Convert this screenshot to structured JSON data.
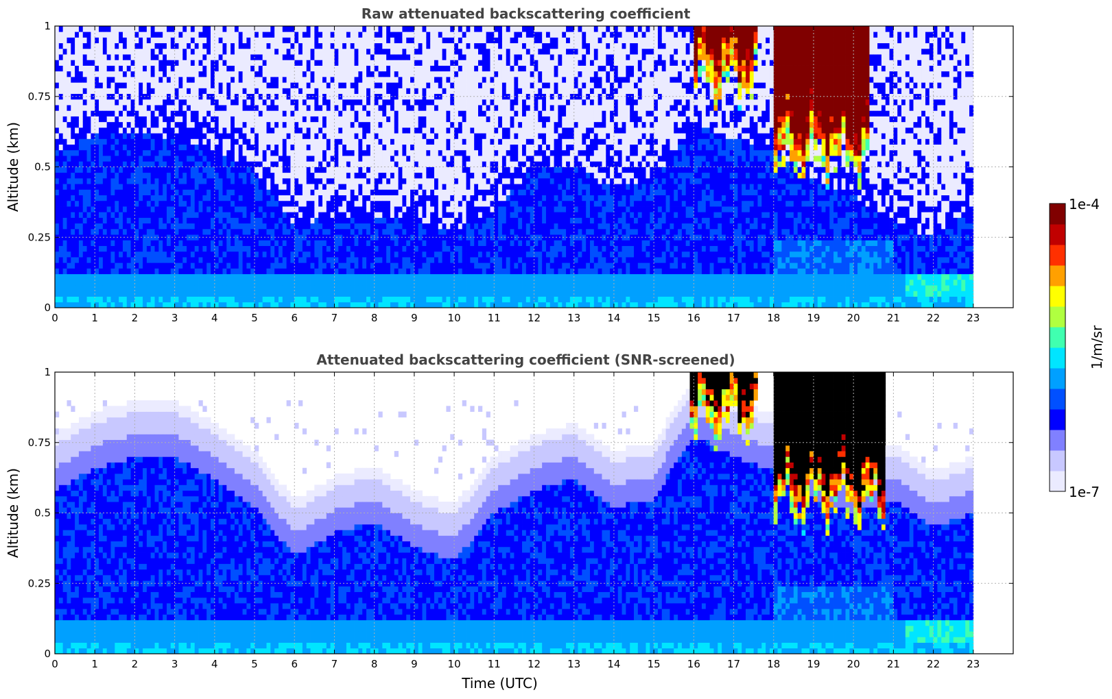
{
  "chart_data": [
    {
      "type": "heatmap",
      "title": "Raw attenuated backscattering coefficient",
      "xlabel": "",
      "ylabel": "Altitude (km)",
      "xlim": [
        0,
        24
      ],
      "ylim": [
        0,
        1
      ],
      "x_ticks": [
        "0",
        "1",
        "2",
        "3",
        "4",
        "5",
        "6",
        "7",
        "8",
        "9",
        "10",
        "11",
        "12",
        "13",
        "14",
        "15",
        "16",
        "17",
        "18",
        "19",
        "20",
        "21",
        "22",
        "23"
      ],
      "y_ticks": [
        "0",
        "0.25",
        "0.5",
        "0.75",
        "1"
      ],
      "data_end_time": 23,
      "screened": false,
      "boundary_layer_top_km": {
        "time": [
          0,
          1,
          2,
          3,
          4,
          5,
          6,
          7,
          8,
          9,
          10,
          11,
          12,
          13,
          14,
          15,
          16,
          17,
          18,
          19,
          20,
          21,
          22,
          23
        ],
        "value": [
          0.55,
          0.62,
          0.62,
          0.6,
          0.56,
          0.48,
          0.3,
          0.32,
          0.33,
          0.3,
          0.27,
          0.35,
          0.5,
          0.5,
          0.42,
          0.45,
          0.65,
          0.6,
          0.55,
          0.45,
          0.4,
          0.3,
          0.25,
          0.35
        ]
      },
      "cloud_layers": [
        {
          "start": 16.0,
          "end": 17.6,
          "base_km": 0.75,
          "top_km": 1.0,
          "peak": "1e-4"
        },
        {
          "start": 18.0,
          "end": 20.4,
          "base_km": 0.48,
          "top_km": 1.0,
          "peak": "1e-4"
        }
      ]
    },
    {
      "type": "heatmap",
      "title": "Attenuated backscattering coefficient (SNR-screened)",
      "xlabel": "Time (UTC)",
      "ylabel": "Altitude (km)",
      "xlim": [
        0,
        24
      ],
      "ylim": [
        0,
        1
      ],
      "x_ticks": [
        "0",
        "1",
        "2",
        "3",
        "4",
        "5",
        "6",
        "7",
        "8",
        "9",
        "10",
        "11",
        "12",
        "13",
        "14",
        "15",
        "16",
        "17",
        "18",
        "19",
        "20",
        "21",
        "22",
        "23"
      ],
      "y_ticks": [
        "0",
        "0.25",
        "0.5",
        "0.75",
        "1"
      ],
      "data_end_time": 23,
      "screened": true,
      "boundary_layer_top_km": {
        "time": [
          0,
          1,
          2,
          3,
          4,
          5,
          6,
          7,
          8,
          9,
          10,
          11,
          12,
          13,
          14,
          15,
          16,
          17,
          18,
          19,
          20,
          21,
          22,
          23
        ],
        "value": [
          0.58,
          0.66,
          0.7,
          0.7,
          0.62,
          0.52,
          0.35,
          0.43,
          0.47,
          0.38,
          0.33,
          0.5,
          0.58,
          0.62,
          0.52,
          0.55,
          0.78,
          0.7,
          0.65,
          0.55,
          0.5,
          0.55,
          0.45,
          0.5
        ]
      },
      "cloud_layers": [
        {
          "start": 15.9,
          "end": 17.6,
          "base_km": 0.78,
          "top_km": 1.0,
          "peak": "1e-4"
        },
        {
          "start": 18.0,
          "end": 20.8,
          "base_km": 0.48,
          "top_km": 1.0,
          "peak": "1e-4"
        }
      ]
    }
  ],
  "colorbar": {
    "label": "1/m/sr",
    "max_label": "1e-4",
    "min_label": "1e-7",
    "colormap": [
      "#ebebff",
      "#c8c8ff",
      "#8080ff",
      "#0000ff",
      "#0050ff",
      "#00a0ff",
      "#00e5ff",
      "#40ffb0",
      "#b0ff40",
      "#ffff00",
      "#ffa000",
      "#ff3000",
      "#c00000",
      "#800000"
    ]
  }
}
